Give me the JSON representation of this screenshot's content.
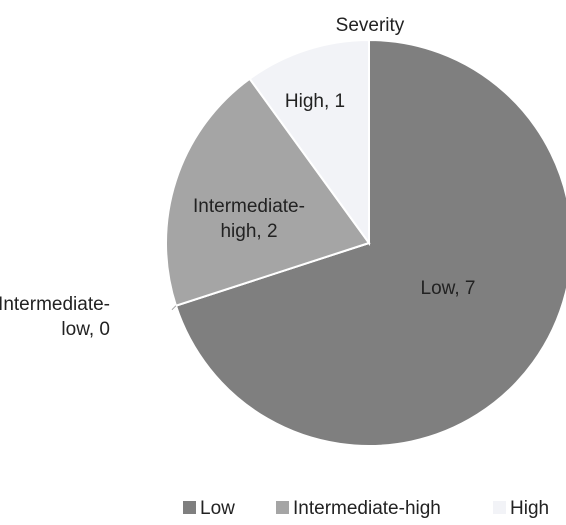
{
  "chart_data": {
    "type": "pie",
    "title": "Severity",
    "categories": [
      "Low",
      "Intermediate-low",
      "Intermediate-high",
      "High"
    ],
    "values": [
      7,
      0,
      2,
      1
    ],
    "data_labels": [
      [
        "Low, 7"
      ],
      [
        "Intermediate-",
        "low, 0"
      ],
      [
        "Intermediate-",
        "high, 2"
      ],
      [
        "High, 1"
      ]
    ],
    "colors": [
      "#7f7f7f",
      "#bfbfbf",
      "#a5a5a5",
      "#f2f3f7"
    ],
    "legend": {
      "position": "bottom",
      "entries": [
        "Low",
        "Intermediate-high",
        "High"
      ]
    }
  }
}
